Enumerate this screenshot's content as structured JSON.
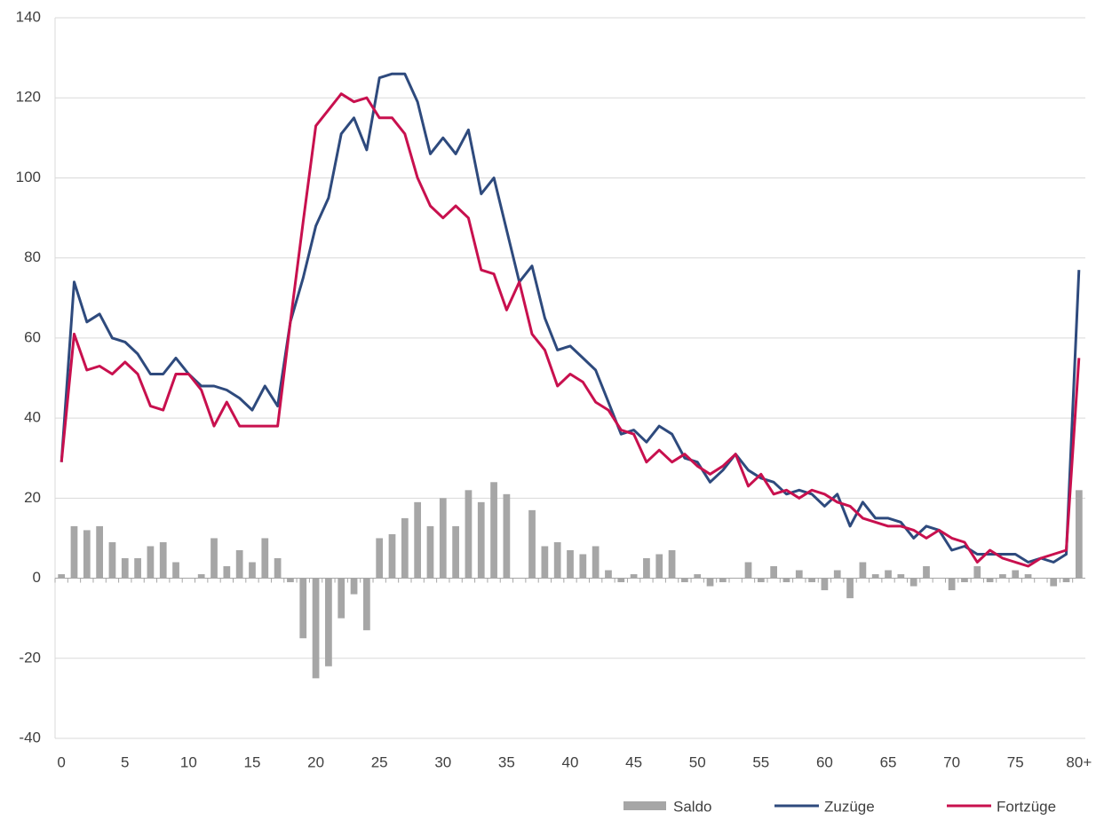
{
  "chart_data": {
    "type": "combo",
    "categories": [
      "0",
      null,
      null,
      null,
      null,
      "5",
      null,
      null,
      null,
      null,
      "10",
      null,
      null,
      null,
      null,
      "15",
      null,
      null,
      null,
      null,
      "20",
      null,
      null,
      null,
      null,
      "25",
      null,
      null,
      null,
      null,
      "30",
      null,
      null,
      null,
      null,
      "35",
      null,
      null,
      null,
      null,
      "40",
      null,
      null,
      null,
      null,
      "45",
      null,
      null,
      null,
      null,
      "50",
      null,
      null,
      null,
      null,
      "55",
      null,
      null,
      null,
      null,
      "60",
      null,
      null,
      null,
      null,
      "65",
      null,
      null,
      null,
      null,
      "70",
      null,
      null,
      null,
      null,
      "75",
      null,
      null,
      null,
      null,
      "80+"
    ],
    "series": [
      {
        "name": "Saldo",
        "type": "bar",
        "color": "#a6a6a6",
        "values": [
          1,
          13,
          12,
          13,
          9,
          5,
          5,
          8,
          9,
          4,
          0,
          1,
          10,
          3,
          7,
          4,
          10,
          5,
          -1,
          -15,
          -25,
          -22,
          -10,
          -4,
          -13,
          10,
          11,
          15,
          19,
          13,
          20,
          13,
          22,
          19,
          24,
          21,
          0,
          17,
          8,
          9,
          7,
          6,
          8,
          2,
          -1,
          1,
          5,
          6,
          7,
          -1,
          1,
          -2,
          -1,
          0,
          4,
          -1,
          3,
          -1,
          2,
          -1,
          -3,
          2,
          -5,
          4,
          1,
          2,
          1,
          -2,
          3,
          0,
          -3,
          -1,
          3,
          -1,
          1,
          2,
          1,
          0,
          -2,
          -1,
          22
        ]
      },
      {
        "name": "Zuzüge",
        "type": "line",
        "color": "#2e4a7d",
        "values": [
          29,
          74,
          64,
          66,
          60,
          59,
          56,
          51,
          51,
          55,
          51,
          48,
          48,
          47,
          45,
          42,
          48,
          43,
          64,
          75,
          88,
          95,
          111,
          115,
          107,
          125,
          126,
          126,
          119,
          106,
          110,
          106,
          112,
          96,
          100,
          87,
          74,
          78,
          65,
          57,
          58,
          55,
          52,
          44,
          36,
          37,
          34,
          38,
          36,
          30,
          29,
          24,
          27,
          31,
          27,
          25,
          24,
          21,
          22,
          21,
          18,
          21,
          13,
          19,
          15,
          15,
          14,
          10,
          13,
          12,
          7,
          8,
          6,
          6,
          6,
          6,
          4,
          5,
          4,
          6,
          77
        ]
      },
      {
        "name": "Fortzüge",
        "type": "line",
        "color": "#c8104e",
        "values": [
          29,
          61,
          52,
          53,
          51,
          54,
          51,
          43,
          42,
          51,
          51,
          47,
          38,
          44,
          38,
          38,
          38,
          38,
          64,
          89,
          113,
          117,
          121,
          119,
          120,
          115,
          115,
          111,
          100,
          93,
          90,
          93,
          90,
          77,
          76,
          67,
          74,
          61,
          57,
          48,
          51,
          49,
          44,
          42,
          37,
          36,
          29,
          32,
          29,
          31,
          28,
          26,
          28,
          31,
          23,
          26,
          21,
          22,
          20,
          22,
          21,
          19,
          18,
          15,
          14,
          13,
          13,
          12,
          10,
          12,
          10,
          9,
          4,
          7,
          5,
          4,
          3,
          5,
          6,
          7,
          55
        ]
      }
    ],
    "ylim": [
      -40,
      140
    ],
    "yticks": [
      -40,
      -20,
      0,
      20,
      40,
      60,
      80,
      100,
      120,
      140
    ],
    "grid": true,
    "legend": "bottom-right"
  }
}
